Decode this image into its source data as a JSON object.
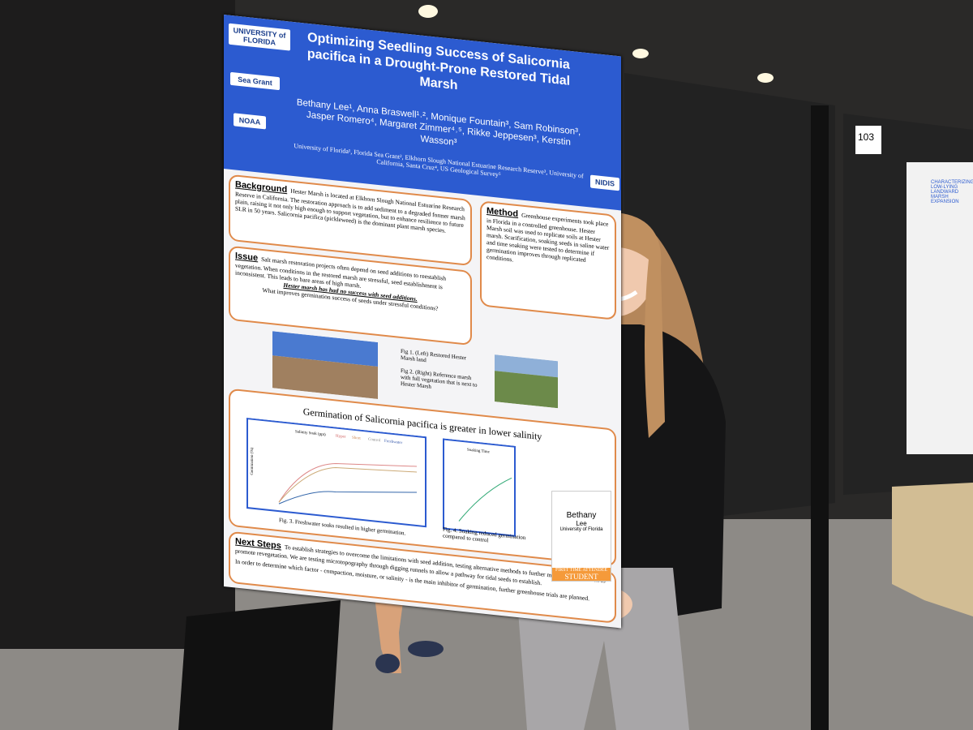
{
  "poster": {
    "logos": [
      "UNIVERSITY of FLORIDA",
      "Sea Grant",
      "NOAA",
      "NIDIS"
    ],
    "title": "Optimizing Seedling Success of Salicornia pacifica in a Drought-Prone Restored Tidal Marsh",
    "authors": "Bethany Lee¹, Anna Braswell¹˒², Monique Fountain³, Sam Robinson³, Jasper Romero⁴, Margaret Zimmer⁴˒⁵, Rikke Jeppesen³, Kerstin Wasson³",
    "affiliations": "University of Florida¹, Florida Sea Grant², Elkhorn Slough National Estuarine Research Reserve³, University of California, Santa Cruz⁴, US Geological Survey⁵",
    "background": {
      "heading": "Background",
      "body": "Hester Marsh is located at Elkhorn Slough National Estuarine Research Reserve in California. The restoration approach is to add sediment to a degraded former marsh plain, raising it not only high enough to support vegetation, but to enhance resilience to future SLR in 50 years. Salicornia pacifica (pickleweed) is the dominant plant marsh species."
    },
    "issue": {
      "heading": "Issue",
      "body": "Salt marsh restoration projects often depend on seed additions to reestablish vegetation. When conditions in the restored marsh are stressful, seed establishment is inconsistent. This leads to bare areas of high marsh.",
      "emphasis": "Hester marsh has had no success with seed additions.",
      "question": "What improves germination success of seeds under stressful conditions?"
    },
    "method": {
      "heading": "Method",
      "body": "Greenhouse experiments took place in Florida in a controlled greenhouse. Hester Marsh soil was used to replicate soils at Hester marsh. Scarification, soaking seeds in saline water and time soaking were tested to determine if germination improves through replicated conditions."
    },
    "figures": [
      "Fig 1. (Left) Restored Hester Marsh land",
      "Fig 2. (Right) Reference marsh with full vegetation that is next to Hester Marsh",
      "Fig. 3. Freshwater soaks resulted in higher germination.",
      "Fig. 4. Soaking reduced germination compared to control"
    ],
    "results_title": "Germination of Salicornia pacifica is greater in lower salinity",
    "chart_legend": [
      "Salinity Soak (ppt)",
      "Hyper",
      "Short",
      "Control",
      "Freshwater"
    ],
    "chart_axis": [
      "Germination (%)",
      "Soaking Time"
    ],
    "next_steps": {
      "heading": "Next Steps",
      "body": "To establish strategies to overcome the limitations with seed addition, testing alternative methods to further manipulate the marsh to promote revegetation. We are testing microtopography through digging runnels to allow a pathway for tidal seeds to establish.",
      "body2": "In order to determine which factor - compaction, moisture, or salinity - is the main inhibitor of germination, further greenhouse trials are planned."
    }
  },
  "badge": {
    "name": "Bethany",
    "surname": "Lee",
    "org": "University of Florida",
    "ribbon": "FIRST TIME ATTENDEE",
    "ribbon2": "STUDENT"
  },
  "booth": "103",
  "neighbor_poster": {
    "title": "CHARACTERIZING LOW-LYING LANDWARD MARSH EXPANSION"
  }
}
